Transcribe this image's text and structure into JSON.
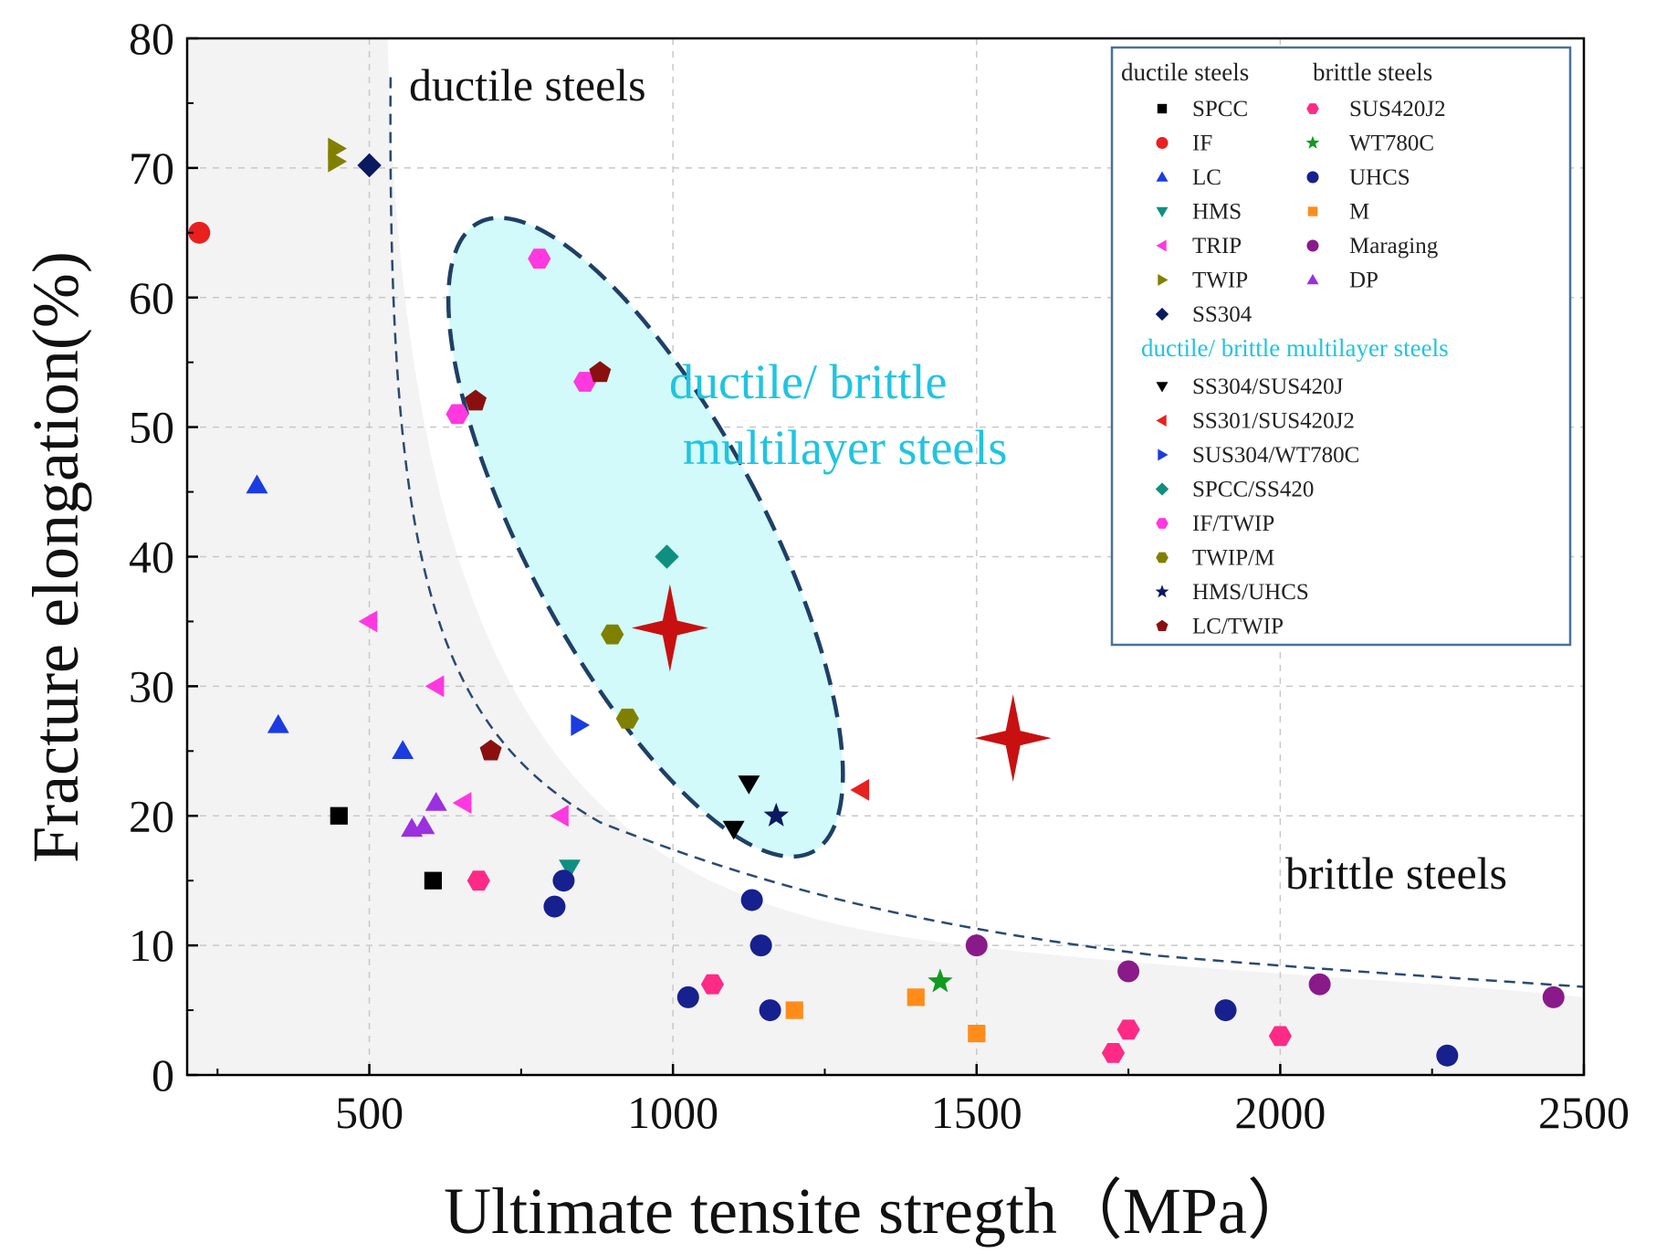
{
  "chart_data": {
    "type": "scatter",
    "title": "",
    "xlabel": "Ultimate tensite stregth（MPa）",
    "ylabel": "Fracture elongation(%)",
    "xlim": [
      200,
      2500
    ],
    "ylim": [
      0,
      80
    ],
    "xticks": [
      500,
      1000,
      1500,
      2000,
      2500
    ],
    "yticks": [
      0,
      10,
      20,
      30,
      40,
      50,
      60,
      70,
      80
    ],
    "grid": true,
    "legend_position": "top-right",
    "colors": {
      "frame": "#000000",
      "boundary": "#2a4a70",
      "ellipse_fill": "#d2fafa",
      "ellipse_stroke": "#1f3f66",
      "annotation_cyan": "#20c4e0",
      "legend_border": "#4a70a0",
      "star": "#c81010"
    },
    "annotations": {
      "ductile_label": "ductile steels",
      "brittle_label": "brittle steels",
      "multilayer_line1": "ductile/ brittle",
      "multilayer_line2": "multilayer steels"
    },
    "legend": {
      "ductile_header": "ductile steels",
      "brittle_header": "brittle steels",
      "multilayer_header": "ductile/ brittle multilayer steels"
    },
    "series": [
      {
        "name": "SPCC",
        "group": "ductile",
        "marker": "square",
        "color": "#000000",
        "x": [
          450,
          605
        ],
        "y": [
          20,
          15
        ]
      },
      {
        "name": "IF",
        "group": "ductile",
        "marker": "circle",
        "color": "#e8201e",
        "x": [
          220
        ],
        "y": [
          65
        ]
      },
      {
        "name": "LC",
        "group": "ductile",
        "marker": "triangle-up",
        "color": "#1a3ce0",
        "x": [
          315,
          350,
          555
        ],
        "y": [
          45.5,
          27,
          25
        ]
      },
      {
        "name": "HMS",
        "group": "ductile",
        "marker": "triangle-down",
        "color": "#0f8f80",
        "x": [
          830
        ],
        "y": [
          16
        ]
      },
      {
        "name": "TRIP",
        "group": "ductile",
        "marker": "triangle-left",
        "color": "#ff38e0",
        "x": [
          500,
          610,
          655,
          815
        ],
        "y": [
          35,
          30,
          21,
          20
        ]
      },
      {
        "name": "TWIP",
        "group": "ductile",
        "marker": "triangle-right",
        "color": "#808000",
        "x": [
          445,
          445
        ],
        "y": [
          71.5,
          70.5
        ]
      },
      {
        "name": "SS304",
        "group": "ductile",
        "marker": "diamond",
        "color": "#0a1a60",
        "x": [
          500
        ],
        "y": [
          70.2
        ]
      },
      {
        "name": "SUS420J2",
        "group": "brittle",
        "marker": "hexagon",
        "color": "#ff2a85",
        "x": [
          680,
          1065,
          1725,
          1750,
          2000
        ],
        "y": [
          15,
          7,
          1.7,
          3.5,
          3
        ]
      },
      {
        "name": "WT780C",
        "group": "brittle",
        "marker": "star",
        "color": "#129a20",
        "x": [
          1440
        ],
        "y": [
          7.2
        ]
      },
      {
        "name": "UHCS",
        "group": "brittle",
        "marker": "sphere",
        "color": "#16208f",
        "x": [
          805,
          820,
          1025,
          1130,
          1145,
          1160,
          1910,
          2275
        ],
        "y": [
          13,
          15,
          6,
          13.5,
          10,
          5,
          5,
          1.5
        ]
      },
      {
        "name": "M",
        "group": "brittle",
        "marker": "square",
        "color": "#ff8c1a",
        "x": [
          1200,
          1400,
          1500
        ],
        "y": [
          5,
          6,
          3.2
        ]
      },
      {
        "name": "Maraging",
        "group": "brittle",
        "marker": "circle",
        "color": "#8a1a8a",
        "x": [
          1500,
          1750,
          2065,
          2450
        ],
        "y": [
          10,
          8,
          7,
          6
        ]
      },
      {
        "name": "DP",
        "group": "brittle",
        "marker": "triangle-up",
        "color": "#9a30e0",
        "x": [
          570,
          590,
          610
        ],
        "y": [
          19,
          19.2,
          21
        ]
      },
      {
        "name": "SS304/SUS420J",
        "group": "multilayer",
        "marker": "triangle-down",
        "color": "#000000",
        "x": [
          1100,
          1125
        ],
        "y": [
          19,
          22.5
        ]
      },
      {
        "name": "SS301/SUS420J2",
        "group": "multilayer",
        "marker": "triangle-left",
        "color": "#e8201e",
        "x": [
          1310
        ],
        "y": [
          22
        ]
      },
      {
        "name": "SUS304/WT780C",
        "group": "multilayer",
        "marker": "triangle-right",
        "color": "#1a3ce0",
        "x": [
          845
        ],
        "y": [
          27
        ]
      },
      {
        "name": "SPCC/SS420",
        "group": "multilayer",
        "marker": "diamond",
        "color": "#0f8f80",
        "x": [
          990
        ],
        "y": [
          40
        ]
      },
      {
        "name": "IF/TWIP",
        "group": "multilayer",
        "marker": "hexagon",
        "color": "#ff38e0",
        "x": [
          645,
          780,
          855
        ],
        "y": [
          51,
          63,
          53.5
        ]
      },
      {
        "name": "TWIP/M",
        "group": "multilayer",
        "marker": "hexagon",
        "color": "#808000",
        "x": [
          900,
          925
        ],
        "y": [
          34,
          27.5
        ]
      },
      {
        "name": "HMS/UHCS",
        "group": "multilayer",
        "marker": "star",
        "color": "#0a1a60",
        "x": [
          1170
        ],
        "y": [
          20
        ]
      },
      {
        "name": "LC/TWIP",
        "group": "multilayer",
        "marker": "pentagon",
        "color": "#8a1010",
        "x": [
          675,
          700,
          880
        ],
        "y": [
          52,
          25,
          54.2
        ]
      }
    ],
    "highlight_points": [
      {
        "marker": "four-point-star",
        "color": "#c81010",
        "x": 995,
        "y": 34.5
      },
      {
        "marker": "four-point-star",
        "color": "#c81010",
        "x": 1560,
        "y": 26
      }
    ]
  }
}
